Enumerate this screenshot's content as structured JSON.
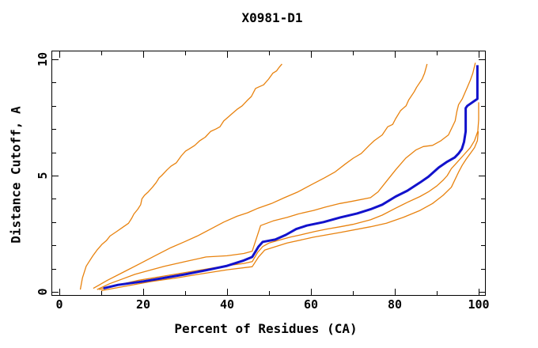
{
  "chart_data": {
    "type": "line",
    "title": "X0981-D1",
    "xlabel": "Percent of Residues (CA)",
    "ylabel": "Distance Cutoff, A",
    "xlim": [
      0,
      100
    ],
    "ylim": [
      0,
      10
    ],
    "x_ticks_major": [
      0,
      20,
      40,
      60,
      80,
      100
    ],
    "x_ticks_minor": [
      10,
      30,
      50,
      70,
      90
    ],
    "y_ticks_major": [
      0,
      5,
      10
    ],
    "y_ticks_minor": [
      1,
      2,
      3,
      4,
      6,
      7,
      8,
      9
    ],
    "grid": false,
    "legend": "none",
    "colors": {
      "orange": "#e8820e",
      "blue": "#1212cc",
      "axis": "#000000",
      "background": "#ffffff"
    },
    "series": [
      {
        "name": "orange-1",
        "color_key": "orange",
        "width": 1.3,
        "points": [
          [
            5,
            0.1
          ],
          [
            5.5,
            0.6
          ],
          [
            6.4,
            1.1
          ],
          [
            7.1,
            1.3
          ],
          [
            8,
            1.55
          ],
          [
            9,
            1.8
          ],
          [
            10.2,
            2.05
          ],
          [
            11.2,
            2.2
          ],
          [
            12.1,
            2.4
          ],
          [
            13.7,
            2.6
          ],
          [
            15.3,
            2.8
          ],
          [
            16.5,
            2.95
          ],
          [
            17.2,
            3.15
          ],
          [
            17.8,
            3.35
          ],
          [
            18.7,
            3.55
          ],
          [
            19.4,
            3.75
          ],
          [
            19.7,
            4.0
          ],
          [
            20.3,
            4.15
          ],
          [
            21.2,
            4.3
          ],
          [
            22.2,
            4.5
          ],
          [
            23.1,
            4.7
          ],
          [
            23.8,
            4.9
          ],
          [
            24.4,
            5.0
          ],
          [
            25.7,
            5.25
          ],
          [
            26.6,
            5.4
          ],
          [
            27.9,
            5.55
          ],
          [
            29.1,
            5.85
          ],
          [
            30.1,
            6.05
          ],
          [
            31,
            6.15
          ],
          [
            32.3,
            6.3
          ],
          [
            33.5,
            6.5
          ],
          [
            34.8,
            6.65
          ],
          [
            36.1,
            6.9
          ],
          [
            37.3,
            7.0
          ],
          [
            38.3,
            7.1
          ],
          [
            39.2,
            7.35
          ],
          [
            40.5,
            7.55
          ],
          [
            41.1,
            7.65
          ],
          [
            42.4,
            7.85
          ],
          [
            43.6,
            8.0
          ],
          [
            44.9,
            8.25
          ],
          [
            45.8,
            8.4
          ],
          [
            46.8,
            8.75
          ],
          [
            47.4,
            8.8
          ],
          [
            48.7,
            8.9
          ],
          [
            49.9,
            9.15
          ],
          [
            50.9,
            9.4
          ],
          [
            51.8,
            9.5
          ],
          [
            52.4,
            9.65
          ],
          [
            53.1,
            9.8
          ]
        ]
      },
      {
        "name": "orange-2",
        "color_key": "orange",
        "width": 1.3,
        "points": [
          [
            8.1,
            0.15
          ],
          [
            11.5,
            0.5
          ],
          [
            15.3,
            0.85
          ],
          [
            19.1,
            1.2
          ],
          [
            22.8,
            1.55
          ],
          [
            26.6,
            1.9
          ],
          [
            29.8,
            2.15
          ],
          [
            32.9,
            2.4
          ],
          [
            36.1,
            2.7
          ],
          [
            39.2,
            3.0
          ],
          [
            42.4,
            3.25
          ],
          [
            44.9,
            3.4
          ],
          [
            47.4,
            3.6
          ],
          [
            50.6,
            3.8
          ],
          [
            53.7,
            4.05
          ],
          [
            56.9,
            4.3
          ],
          [
            60,
            4.6
          ],
          [
            63.2,
            4.9
          ],
          [
            65.7,
            5.15
          ],
          [
            68.2,
            5.5
          ],
          [
            70.1,
            5.75
          ],
          [
            72,
            5.95
          ],
          [
            73.9,
            6.3
          ],
          [
            75.1,
            6.5
          ],
          [
            77,
            6.75
          ],
          [
            78.3,
            7.1
          ],
          [
            79.5,
            7.2
          ],
          [
            80.2,
            7.45
          ],
          [
            81.4,
            7.8
          ],
          [
            82.7,
            8.0
          ],
          [
            83.3,
            8.25
          ],
          [
            84.6,
            8.6
          ],
          [
            85.2,
            8.8
          ],
          [
            86.5,
            9.15
          ],
          [
            87.1,
            9.4
          ],
          [
            87.4,
            9.6
          ],
          [
            87.7,
            9.8
          ]
        ]
      },
      {
        "name": "orange-3",
        "color_key": "orange",
        "width": 1.3,
        "points": [
          [
            9,
            0.1
          ],
          [
            12,
            0.35
          ],
          [
            15,
            0.55
          ],
          [
            18,
            0.75
          ],
          [
            21,
            0.9
          ],
          [
            25,
            1.1
          ],
          [
            30,
            1.3
          ],
          [
            35,
            1.5
          ],
          [
            40,
            1.55
          ],
          [
            44,
            1.65
          ],
          [
            46,
            1.75
          ],
          [
            47,
            2.3
          ],
          [
            48,
            2.85
          ],
          [
            51,
            3.05
          ],
          [
            54.3,
            3.2
          ],
          [
            57,
            3.35
          ],
          [
            60.6,
            3.5
          ],
          [
            63.5,
            3.65
          ],
          [
            66.9,
            3.8
          ],
          [
            70,
            3.9
          ],
          [
            74.2,
            4.05
          ],
          [
            76,
            4.3
          ],
          [
            78,
            4.75
          ],
          [
            80.2,
            5.25
          ],
          [
            82.6,
            5.75
          ],
          [
            85,
            6.1
          ],
          [
            86.8,
            6.25
          ],
          [
            89,
            6.3
          ],
          [
            91,
            6.5
          ],
          [
            92.8,
            6.75
          ],
          [
            94.4,
            7.35
          ],
          [
            94.8,
            7.75
          ],
          [
            95.2,
            8.05
          ],
          [
            96.1,
            8.3
          ],
          [
            97.3,
            8.8
          ],
          [
            98,
            9.1
          ],
          [
            98.6,
            9.4
          ],
          [
            99.2,
            9.85
          ]
        ]
      },
      {
        "name": "orange-4",
        "color_key": "orange",
        "width": 1.3,
        "points": [
          [
            9.5,
            0.1
          ],
          [
            14,
            0.3
          ],
          [
            19,
            0.5
          ],
          [
            24,
            0.65
          ],
          [
            29,
            0.8
          ],
          [
            34,
            0.95
          ],
          [
            40,
            1.13
          ],
          [
            44,
            1.22
          ],
          [
            46,
            1.3
          ],
          [
            47.3,
            1.7
          ],
          [
            48.5,
            1.95
          ],
          [
            50,
            2.1
          ],
          [
            52,
            2.2
          ],
          [
            55,
            2.35
          ],
          [
            57.5,
            2.45
          ],
          [
            61,
            2.6
          ],
          [
            63.8,
            2.7
          ],
          [
            67,
            2.8
          ],
          [
            70,
            2.9
          ],
          [
            74.2,
            3.1
          ],
          [
            77,
            3.3
          ],
          [
            80.2,
            3.6
          ],
          [
            83,
            3.85
          ],
          [
            86,
            4.1
          ],
          [
            88,
            4.3
          ],
          [
            90,
            4.55
          ],
          [
            91.5,
            4.8
          ],
          [
            92.5,
            5.0
          ],
          [
            93.5,
            5.3
          ],
          [
            95,
            5.6
          ],
          [
            96.5,
            5.9
          ],
          [
            98,
            6.2
          ],
          [
            99,
            6.5
          ],
          [
            99.8,
            6.9
          ],
          [
            100,
            7.4
          ],
          [
            100,
            8.15
          ]
        ]
      },
      {
        "name": "orange-5",
        "color_key": "orange",
        "width": 1.3,
        "points": [
          [
            10,
            0.05
          ],
          [
            16,
            0.25
          ],
          [
            22,
            0.45
          ],
          [
            28,
            0.6
          ],
          [
            34,
            0.78
          ],
          [
            40,
            0.95
          ],
          [
            46,
            1.08
          ],
          [
            47.5,
            1.5
          ],
          [
            49,
            1.8
          ],
          [
            54.3,
            2.1
          ],
          [
            60.6,
            2.35
          ],
          [
            66.9,
            2.55
          ],
          [
            74.2,
            2.8
          ],
          [
            78,
            2.95
          ],
          [
            82,
            3.2
          ],
          [
            86,
            3.5
          ],
          [
            89,
            3.8
          ],
          [
            91.5,
            4.15
          ],
          [
            93.5,
            4.5
          ],
          [
            95.2,
            5.15
          ],
          [
            96.1,
            5.45
          ],
          [
            97,
            5.7
          ],
          [
            98,
            5.95
          ],
          [
            99,
            6.2
          ],
          [
            99.7,
            6.5
          ],
          [
            99.9,
            6.9
          ]
        ]
      },
      {
        "name": "highlighted-blue",
        "color_key": "blue",
        "width": 3,
        "points": [
          [
            10.5,
            0.15
          ],
          [
            14,
            0.3
          ],
          [
            20,
            0.45
          ],
          [
            25,
            0.6
          ],
          [
            30,
            0.75
          ],
          [
            35,
            0.93
          ],
          [
            40,
            1.12
          ],
          [
            44,
            1.35
          ],
          [
            46,
            1.5
          ],
          [
            47.5,
            1.95
          ],
          [
            48.5,
            2.15
          ],
          [
            51.5,
            2.25
          ],
          [
            54,
            2.45
          ],
          [
            56.5,
            2.7
          ],
          [
            59,
            2.85
          ],
          [
            63,
            3.0
          ],
          [
            67,
            3.2
          ],
          [
            71,
            3.37
          ],
          [
            74.2,
            3.55
          ],
          [
            77,
            3.75
          ],
          [
            80.2,
            4.1
          ],
          [
            83,
            4.35
          ],
          [
            86,
            4.7
          ],
          [
            88,
            4.95
          ],
          [
            90.5,
            5.35
          ],
          [
            92.5,
            5.6
          ],
          [
            94.3,
            5.78
          ],
          [
            95.2,
            5.95
          ],
          [
            96,
            6.15
          ],
          [
            96.5,
            6.45
          ],
          [
            96.9,
            6.9
          ],
          [
            96.9,
            7.9
          ],
          [
            97.3,
            8.0
          ],
          [
            99.7,
            8.3
          ],
          [
            99.7,
            9.75
          ]
        ]
      }
    ]
  }
}
